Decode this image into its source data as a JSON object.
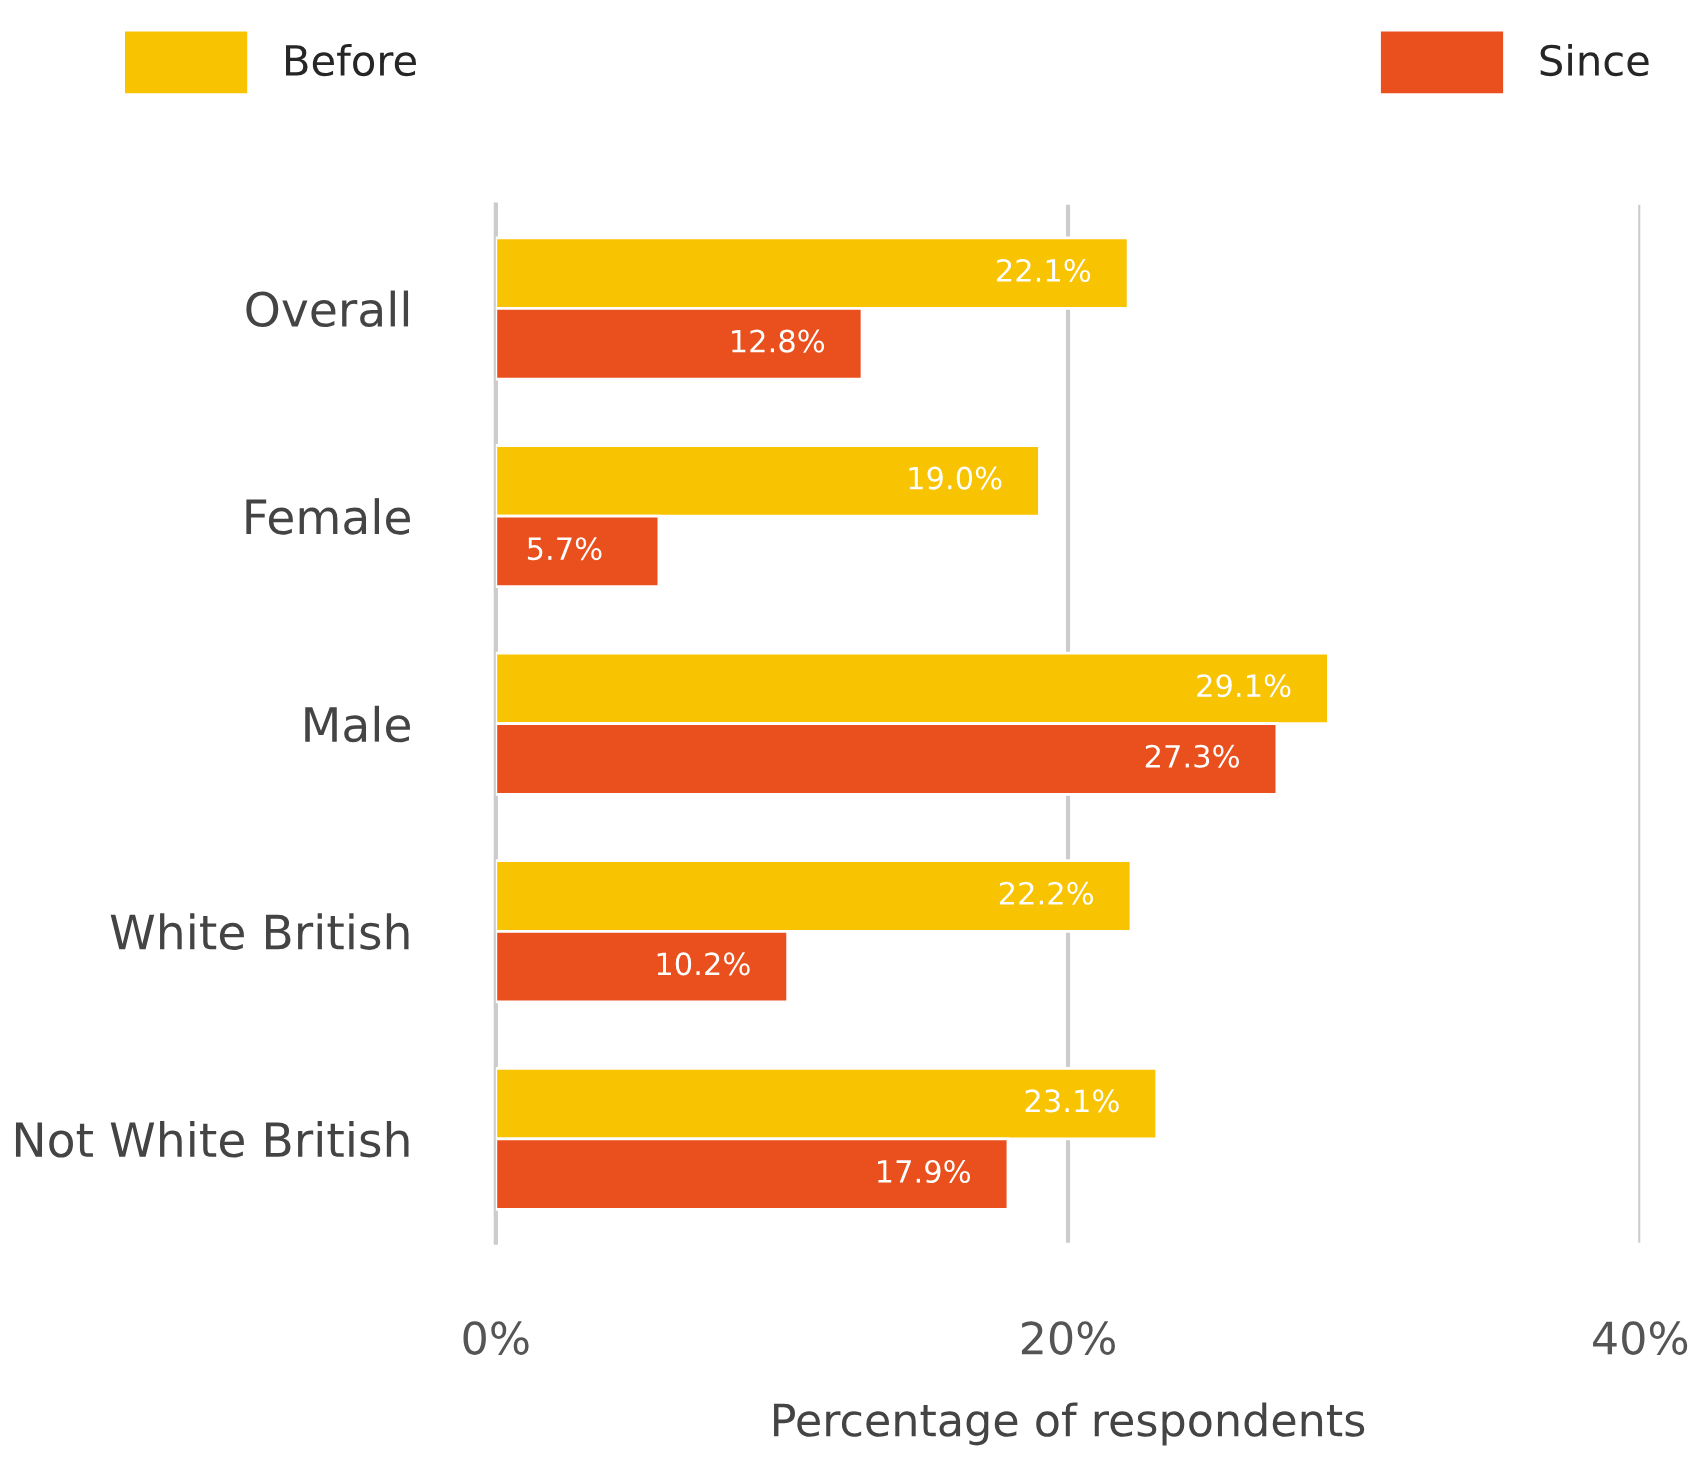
{
  "chart_data": {
    "type": "bar",
    "orientation": "horizontal",
    "xlabel": "Percentage of respondents",
    "categories": [
      "Overall",
      "Female",
      "Male",
      "White British",
      "Not White British"
    ],
    "series": [
      {
        "name": "Before",
        "color": "#f8c300",
        "values": [
          22.1,
          19.0,
          29.1,
          22.2,
          23.1
        ],
        "value_labels": [
          "22.1%",
          "19.0%",
          "29.1%",
          "22.2%",
          "23.1%"
        ]
      },
      {
        "name": "Since",
        "color": "#e9501e",
        "values": [
          12.8,
          5.7,
          27.3,
          10.2,
          17.9
        ],
        "value_labels": [
          "12.8%",
          "5.7%",
          "27.3%",
          "10.2%",
          "17.9%"
        ]
      }
    ],
    "xlim": [
      0,
      40
    ],
    "xticks": [
      {
        "value": 0,
        "label": "0%"
      },
      {
        "value": 20,
        "label": "20%"
      },
      {
        "value": 40,
        "label": "40%"
      }
    ],
    "grid": "x",
    "legend": "top"
  }
}
